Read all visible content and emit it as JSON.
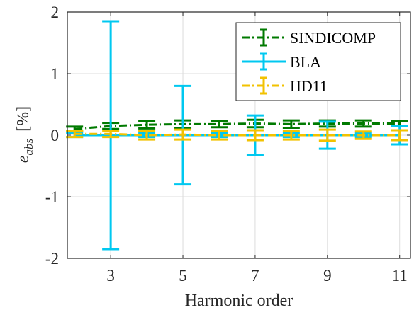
{
  "chart_data": {
    "type": "errorbar-line",
    "xlabel": "Harmonic order",
    "ylabel_main": "e",
    "ylabel_sub": "abs",
    "ylabel_unit": "[%]",
    "xlim": [
      1.8,
      11.3
    ],
    "ylim": [
      -2,
      2
    ],
    "xticks": [
      3,
      5,
      7,
      9,
      11
    ],
    "yticks": [
      -2,
      -1,
      0,
      1,
      2
    ],
    "grid": true,
    "legend_position": "top-right",
    "series": [
      {
        "name": "SINDICOMP",
        "color": "#007a00",
        "line_style": "dash-dot",
        "x": [
          2,
          3,
          4,
          5,
          6,
          7,
          8,
          9,
          10,
          11
        ],
        "y": [
          0.1,
          0.15,
          0.17,
          0.18,
          0.18,
          0.19,
          0.18,
          0.19,
          0.19,
          0.19
        ],
        "err": [
          0.04,
          0.05,
          0.06,
          0.06,
          0.05,
          0.06,
          0.06,
          0.05,
          0.05,
          0.04
        ]
      },
      {
        "name": "BLA",
        "color": "#00c8f0",
        "line_style": "solid",
        "x": [
          2,
          3,
          4,
          5,
          6,
          7,
          8,
          9,
          10,
          11
        ],
        "y": [
          0.0,
          0.0,
          0.0,
          0.0,
          0.0,
          0.0,
          0.0,
          0.0,
          0.0,
          0.0
        ],
        "err": [
          0.03,
          1.85,
          0.03,
          0.8,
          0.03,
          0.32,
          0.03,
          0.22,
          0.03,
          0.15
        ]
      },
      {
        "name": "HD11",
        "color": "#f2c200",
        "line_style": "dash-dot",
        "x": [
          2,
          3,
          4,
          5,
          6,
          7,
          8,
          9,
          10,
          11
        ],
        "y": [
          0.02,
          0.02,
          0.0,
          0.01,
          0.0,
          0.0,
          0.0,
          0.0,
          0.0,
          0.0
        ],
        "err": [
          0.05,
          0.05,
          0.07,
          0.08,
          0.07,
          0.08,
          0.07,
          0.09,
          0.06,
          0.08
        ]
      }
    ]
  }
}
